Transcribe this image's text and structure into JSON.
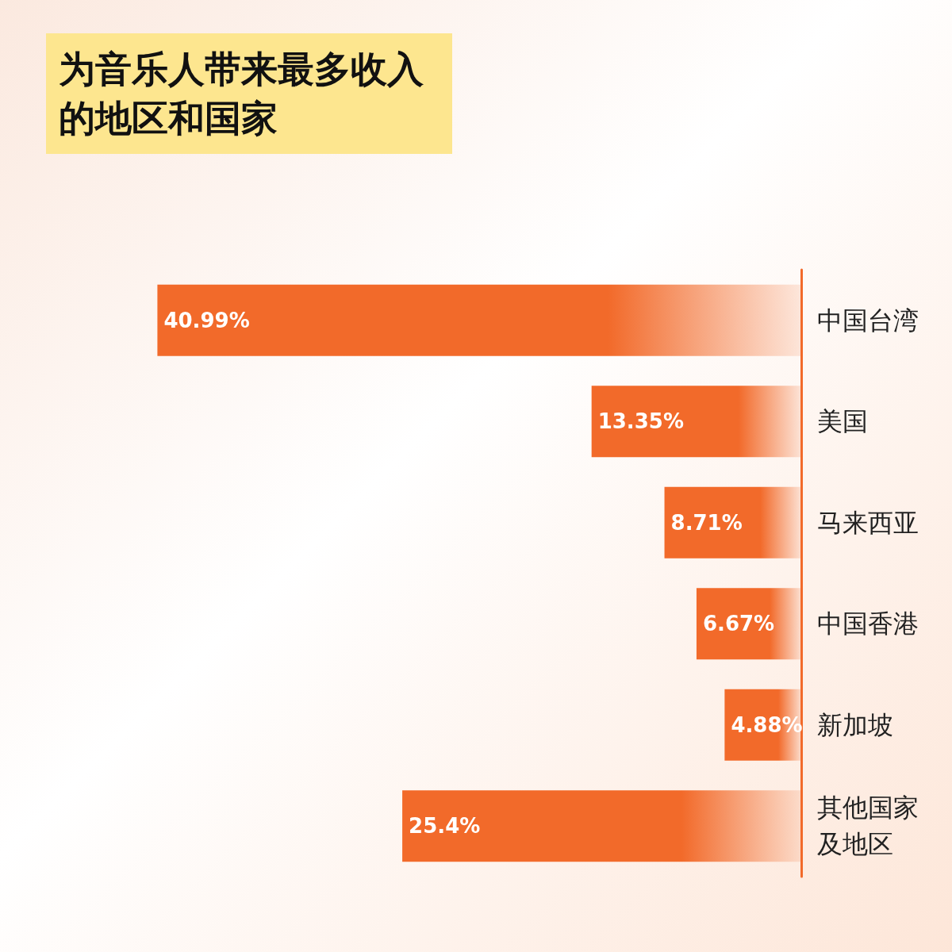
{
  "chart_data": {
    "type": "bar",
    "orientation": "horizontal",
    "title": "为音乐人带来最多收入的地区和国家",
    "categories": [
      "中国台湾",
      "美国",
      "马来西亚",
      "中国香港",
      "新加坡",
      "其他国家及地区"
    ],
    "values": [
      40.99,
      13.35,
      8.71,
      6.67,
      4.88,
      25.4
    ],
    "value_labels": [
      "40.99%",
      "13.35%",
      "8.71%",
      "6.67%",
      "4.88%",
      "25.4%"
    ],
    "color": "#f26a2a",
    "grid": false
  }
}
